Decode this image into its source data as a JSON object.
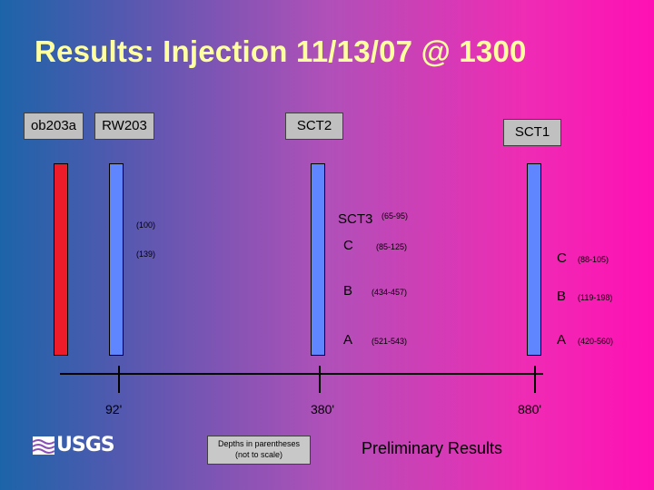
{
  "title": "Results: Injection 11/13/07 @ 1300",
  "wells": {
    "ob203a": "ob203a",
    "rw203": "RW203",
    "sct2": "SCT2",
    "sct1": "SCT1"
  },
  "sct3": {
    "label": "SCT3",
    "depth": "(65-95)"
  },
  "rw203_depths": {
    "d1": "(100)",
    "d2": "(139)"
  },
  "sct2_intervals": [
    {
      "label": "C",
      "depth": "(85-125)"
    },
    {
      "label": "B",
      "depth": "(434-457)"
    },
    {
      "label": "A",
      "depth": "(521-543)"
    }
  ],
  "sct1_intervals": [
    {
      "label": "C",
      "depth": "(88-105)"
    },
    {
      "label": "B",
      "depth": "(119-198)"
    },
    {
      "label": "A",
      "depth": "(420-560)"
    }
  ],
  "distances": {
    "d1": "92'",
    "d2": "380'",
    "d3": "880'"
  },
  "note": "Depths in parentheses (not to scale)",
  "footer": "Preliminary Results",
  "logo": "USGS",
  "colors": {
    "title": "#ffffa0",
    "well_blue": "#5f86ff",
    "well_red": "#ee1c28"
  }
}
